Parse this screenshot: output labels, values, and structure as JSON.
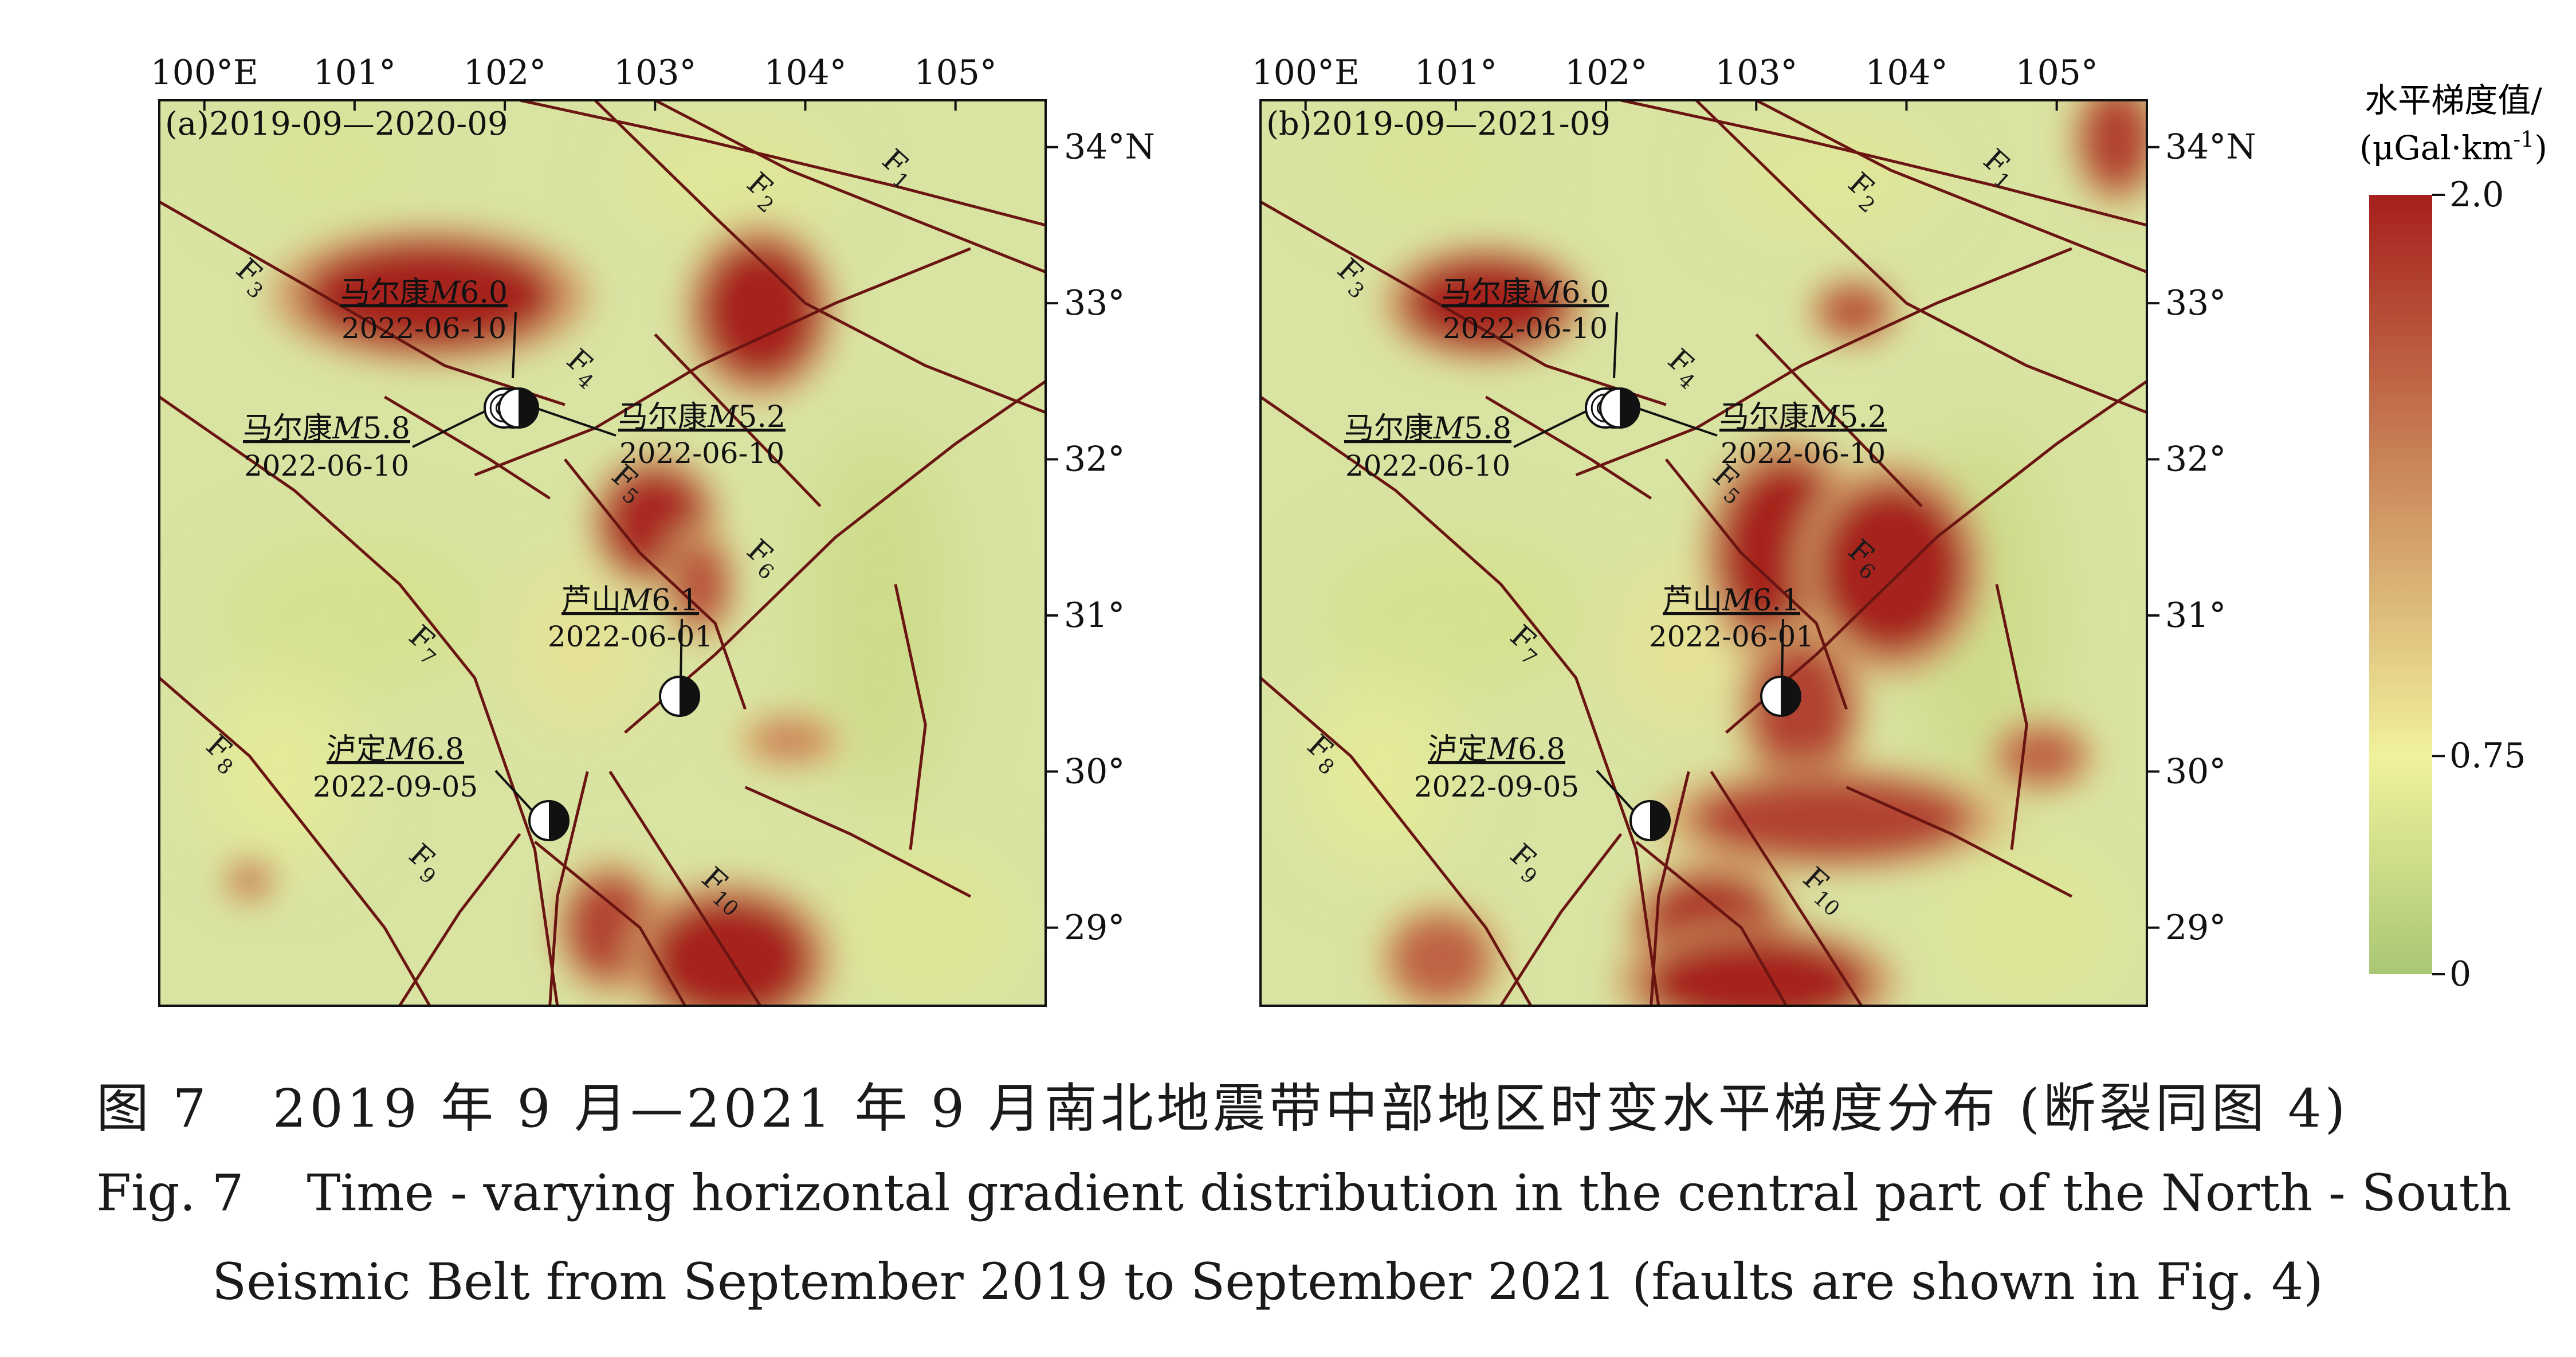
{
  "colorbar": {
    "title_line1": "水平梯度值/",
    "title_line2_prefix": "(μGal·km",
    "title_line2_exp": "-1",
    "title_line2_suffix": ")",
    "ticks": [
      {
        "value": 2.0,
        "label": "2.0"
      },
      {
        "value": 0.75,
        "label": "0.75"
      },
      {
        "value": 0,
        "label": "0"
      }
    ],
    "colors": {
      "high": "#a6201c",
      "mid": "#f1f29b",
      "low": "#a9c774"
    }
  },
  "map_extent": {
    "lon_min": 99.7,
    "lon_max": 105.6,
    "lat_min": 28.5,
    "lat_max": 34.3
  },
  "lon_ticks": [
    {
      "value": 100,
      "label": "100°E"
    },
    {
      "value": 101,
      "label": "101°"
    },
    {
      "value": 102,
      "label": "102°"
    },
    {
      "value": 103,
      "label": "103°"
    },
    {
      "value": 104,
      "label": "104°"
    },
    {
      "value": 105,
      "label": "105°"
    }
  ],
  "lat_ticks": [
    {
      "value": 34,
      "label": "34°N"
    },
    {
      "value": 33,
      "label": "33°"
    },
    {
      "value": 32,
      "label": "32°"
    },
    {
      "value": 31,
      "label": "31°"
    },
    {
      "value": 30,
      "label": "30°"
    },
    {
      "value": 29,
      "label": "29°"
    }
  ],
  "panels": [
    {
      "title": "(a)2019-09—2020-09",
      "anomalies": [
        {
          "lon": 101.5,
          "lat": 33.05,
          "rx": 0.85,
          "ry": 0.35,
          "v": 2.0
        },
        {
          "lon": 103.7,
          "lat": 32.95,
          "rx": 0.4,
          "ry": 0.45,
          "v": 2.0
        },
        {
          "lon": 103.0,
          "lat": 31.6,
          "rx": 0.35,
          "ry": 0.35,
          "v": 1.95
        },
        {
          "lon": 103.3,
          "lat": 31.2,
          "rx": 0.2,
          "ry": 0.3,
          "v": 1.7
        },
        {
          "lon": 102.7,
          "lat": 29.0,
          "rx": 0.3,
          "ry": 0.35,
          "v": 1.8
        },
        {
          "lon": 103.5,
          "lat": 28.8,
          "rx": 0.55,
          "ry": 0.4,
          "v": 2.0
        },
        {
          "lon": 103.9,
          "lat": 30.2,
          "rx": 0.3,
          "ry": 0.15,
          "v": 1.4
        },
        {
          "lon": 100.3,
          "lat": 29.3,
          "rx": 0.15,
          "ry": 0.12,
          "v": 1.5
        }
      ]
    },
    {
      "title": "(b)2019-09—2021-09",
      "anomalies": [
        {
          "lon": 101.2,
          "lat": 33.0,
          "rx": 0.55,
          "ry": 0.3,
          "v": 2.0
        },
        {
          "lon": 103.65,
          "lat": 32.95,
          "rx": 0.25,
          "ry": 0.18,
          "v": 1.7
        },
        {
          "lon": 103.2,
          "lat": 31.4,
          "rx": 0.45,
          "ry": 0.6,
          "v": 2.0
        },
        {
          "lon": 103.9,
          "lat": 31.3,
          "rx": 0.5,
          "ry": 0.55,
          "v": 2.0
        },
        {
          "lon": 103.3,
          "lat": 30.4,
          "rx": 0.35,
          "ry": 0.45,
          "v": 1.8
        },
        {
          "lon": 103.5,
          "lat": 29.7,
          "rx": 0.95,
          "ry": 0.28,
          "v": 1.8
        },
        {
          "lon": 102.7,
          "lat": 29.0,
          "rx": 0.45,
          "ry": 0.35,
          "v": 1.9
        },
        {
          "lon": 103.0,
          "lat": 28.65,
          "rx": 0.75,
          "ry": 0.3,
          "v": 2.0
        },
        {
          "lon": 100.9,
          "lat": 28.8,
          "rx": 0.35,
          "ry": 0.3,
          "v": 1.6
        },
        {
          "lon": 104.9,
          "lat": 30.1,
          "rx": 0.3,
          "ry": 0.2,
          "v": 1.6
        },
        {
          "lon": 105.4,
          "lat": 34.05,
          "rx": 0.25,
          "ry": 0.35,
          "v": 1.8
        }
      ]
    }
  ],
  "earthquakes": [
    {
      "name": "马尔康",
      "mag_prefix": "M",
      "mag": "6.0",
      "date": "2022-06-10",
      "lon": 102.0,
      "lat": 32.35
    },
    {
      "name": "马尔康",
      "mag_prefix": "M",
      "mag": "5.8",
      "date": "2022-06-10",
      "lon": 101.9,
      "lat": 32.35
    },
    {
      "name": "马尔康",
      "mag_prefix": "M",
      "mag": "5.2",
      "date": "2022-06-10",
      "lon": 102.0,
      "lat": 32.3
    },
    {
      "name": "芦山",
      "mag_prefix": "M",
      "mag": "6.1",
      "date": "2022-06-01",
      "lon": 102.95,
      "lat": 30.4
    },
    {
      "name": "泸定",
      "mag_prefix": "M",
      "mag": "6.8",
      "date": "2022-09-05",
      "lon": 102.08,
      "lat": 29.59
    }
  ],
  "fault_labels": [
    "F",
    "1",
    "2",
    "3",
    "4",
    "5",
    "6",
    "7",
    "8",
    "9",
    "10"
  ],
  "faults": [
    {
      "label": "1",
      "pts": [
        [
          102.1,
          34.3
        ],
        [
          103.3,
          34.05
        ],
        [
          104.6,
          33.75
        ],
        [
          105.6,
          33.5
        ]
      ],
      "lab": [
        104.5,
        33.9
      ]
    },
    {
      "label": "2",
      "pts": [
        [
          102.6,
          34.3
        ],
        [
          103.4,
          33.55
        ],
        [
          104.0,
          33.0
        ],
        [
          104.8,
          32.6
        ],
        [
          105.6,
          32.3
        ]
      ],
      "lab": [
        103.6,
        33.75
      ]
    },
    {
      "label": "3",
      "pts": [
        [
          99.7,
          33.65
        ],
        [
          100.7,
          33.1
        ],
        [
          101.6,
          32.6
        ],
        [
          102.4,
          32.35
        ]
      ],
      "lab": [
        100.2,
        33.2
      ]
    },
    {
      "label": "4",
      "pts": [
        [
          101.8,
          31.9
        ],
        [
          102.6,
          32.2
        ],
        [
          103.3,
          32.6
        ],
        [
          104.2,
          33.0
        ],
        [
          105.1,
          33.35
        ]
      ],
      "lab": [
        102.4,
        32.62
      ]
    },
    {
      "label": "5",
      "pts": [
        [
          102.4,
          32.0
        ],
        [
          102.9,
          31.4
        ],
        [
          103.4,
          30.95
        ],
        [
          103.6,
          30.4
        ]
      ],
      "lab": [
        102.7,
        31.88
      ]
    },
    {
      "label": "6",
      "pts": [
        [
          102.8,
          30.25
        ],
        [
          103.4,
          30.75
        ],
        [
          104.2,
          31.5
        ],
        [
          105.0,
          32.1
        ],
        [
          105.6,
          32.5
        ]
      ],
      "lab": [
        103.6,
        31.4
      ]
    },
    {
      "label": "7",
      "pts": [
        [
          99.7,
          32.4
        ],
        [
          100.6,
          31.8
        ],
        [
          101.3,
          31.2
        ],
        [
          101.8,
          30.6
        ],
        [
          102.2,
          29.5
        ],
        [
          102.35,
          28.5
        ]
      ],
      "lab": [
        101.35,
        30.85
      ]
    },
    {
      "label": "8",
      "pts": [
        [
          99.7,
          30.6
        ],
        [
          100.3,
          30.1
        ],
        [
          101.2,
          29.0
        ],
        [
          101.5,
          28.5
        ]
      ],
      "lab": [
        100.0,
        30.15
      ]
    },
    {
      "label": "9",
      "pts": [
        [
          101.3,
          28.5
        ],
        [
          101.7,
          29.1
        ],
        [
          102.1,
          29.6
        ]
      ],
      "lab": [
        101.35,
        29.45
      ]
    },
    {
      "label": "10",
      "pts": [
        [
          102.7,
          30.0
        ],
        [
          103.2,
          29.25
        ],
        [
          103.7,
          28.5
        ]
      ],
      "lab": [
        103.3,
        29.3
      ]
    },
    {
      "label": "",
      "pts": [
        [
          103.0,
          34.3
        ],
        [
          103.9,
          33.85
        ],
        [
          105.6,
          33.2
        ]
      ],
      "lab": null
    },
    {
      "label": "",
      "pts": [
        [
          102.55,
          30.0
        ],
        [
          102.35,
          29.2
        ],
        [
          102.3,
          28.5
        ]
      ],
      "lab": null
    },
    {
      "label": "",
      "pts": [
        [
          102.2,
          29.55
        ],
        [
          102.9,
          29.0
        ],
        [
          103.2,
          28.5
        ]
      ],
      "lab": null
    },
    {
      "label": "",
      "pts": [
        [
          103.0,
          32.8
        ],
        [
          103.6,
          32.2
        ],
        [
          104.1,
          31.7
        ]
      ],
      "lab": null
    },
    {
      "label": "",
      "pts": [
        [
          104.6,
          31.2
        ],
        [
          104.8,
          30.3
        ],
        [
          104.7,
          29.5
        ]
      ],
      "lab": null
    },
    {
      "label": "",
      "pts": [
        [
          103.6,
          29.9
        ],
        [
          104.3,
          29.6
        ],
        [
          105.1,
          29.2
        ]
      ],
      "lab": null
    },
    {
      "label": "",
      "pts": [
        [
          101.2,
          32.4
        ],
        [
          101.9,
          32.0
        ],
        [
          102.3,
          31.75
        ]
      ],
      "lab": null
    }
  ],
  "caption": {
    "cn_fig": "图 7",
    "cn_text": "2019 年 9 月—2021 年 9 月南北地震带中部地区时变水平梯度分布 (断裂同图 4)",
    "en_fig": "Fig. 7",
    "en_line1": "Time - varying horizontal gradient distribution in the central part of the North - South",
    "en_line2": "Seismic Belt from September 2019 to September 2021 (faults are shown in Fig. 4)"
  }
}
